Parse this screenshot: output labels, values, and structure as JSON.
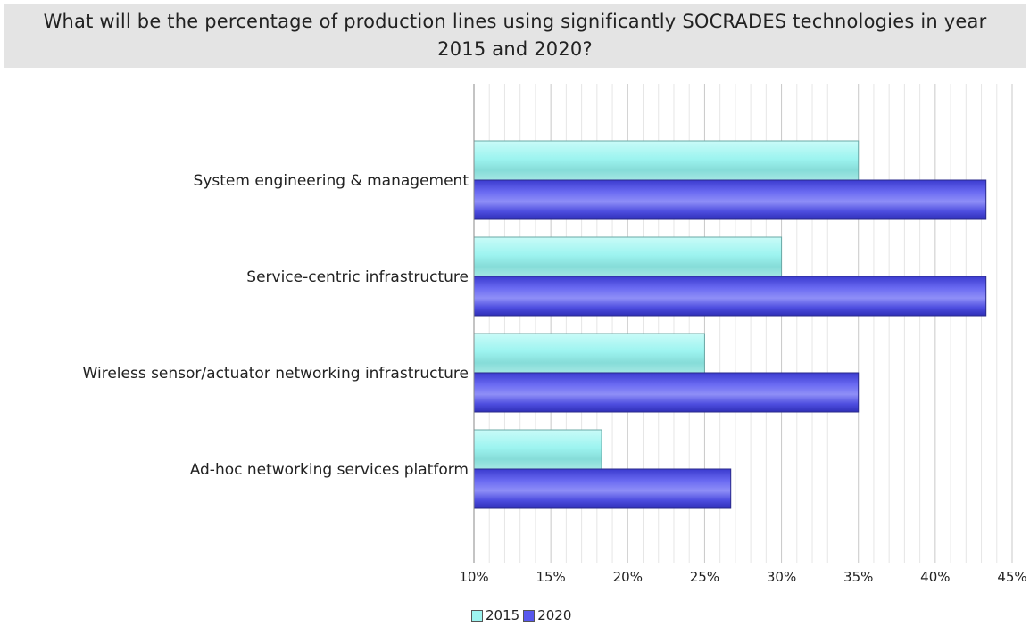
{
  "chart_data": {
    "type": "bar",
    "orientation": "horizontal",
    "title": "What will be the percentage of production lines using significantly SOCRADES technologies in year 2015 and 2020?",
    "categories": [
      "System engineering & management",
      "Service-centric infrastructure",
      "Wireless sensor/actuator networking infrastructure",
      "Ad-hoc networking services platform"
    ],
    "series": [
      {
        "name": "2015",
        "color": "#9df4f0",
        "values": [
          35,
          30,
          25,
          18.3
        ]
      },
      {
        "name": "2020",
        "color": "#5858ee",
        "values": [
          43.3,
          43.3,
          35,
          26.7
        ]
      }
    ],
    "xlim": [
      10,
      45
    ],
    "xticks": [
      10,
      15,
      20,
      25,
      30,
      35,
      40,
      45
    ],
    "xtick_labels": [
      "10%",
      "15%",
      "20%",
      "25%",
      "30%",
      "35%",
      "40%",
      "45%"
    ],
    "grid": true,
    "legend_position": "bottom"
  }
}
